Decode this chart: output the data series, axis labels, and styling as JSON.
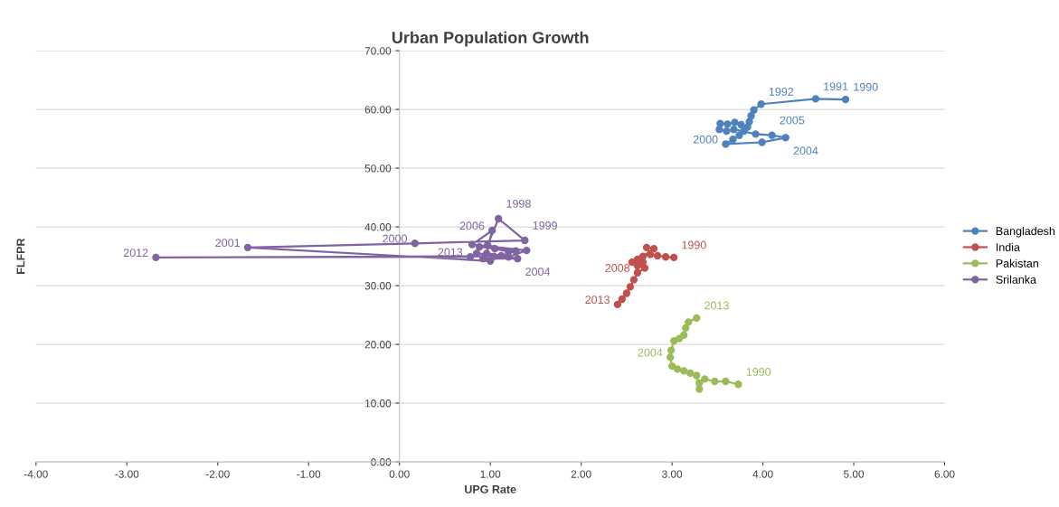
{
  "chart_data": {
    "type": "line",
    "title": "Urban Population Growth",
    "xlabel": "UPG Rate",
    "ylabel": "FLFPR",
    "xlim": [
      -4,
      6
    ],
    "ylim": [
      0,
      70
    ],
    "xticks": [
      {
        "value": -4,
        "label": "-4.00"
      },
      {
        "value": -3,
        "label": "-3.00"
      },
      {
        "value": -2,
        "label": "-2.00"
      },
      {
        "value": -1,
        "label": "-1.00"
      },
      {
        "value": 0,
        "label": "0.00"
      },
      {
        "value": 1,
        "label": "1.00"
      },
      {
        "value": 2,
        "label": "2.00"
      },
      {
        "value": 3,
        "label": "3.00"
      },
      {
        "value": 4,
        "label": "4.00"
      },
      {
        "value": 5,
        "label": "5.00"
      },
      {
        "value": 6,
        "label": "6.00"
      }
    ],
    "yticks": [
      {
        "value": 0,
        "label": "0.00"
      },
      {
        "value": 10,
        "label": "10.00"
      },
      {
        "value": 20,
        "label": "20.00"
      },
      {
        "value": 30,
        "label": "30.00"
      },
      {
        "value": 40,
        "label": "40.00"
      },
      {
        "value": 50,
        "label": "50.00"
      },
      {
        "value": 60,
        "label": "60.00"
      },
      {
        "value": 70,
        "label": "70.00"
      }
    ],
    "grid": "y",
    "legend": "right",
    "marker": "circle",
    "line_style": "solid",
    "series": [
      {
        "name": "Bangladesh",
        "color": "#4f81bd",
        "x": [
          4.91,
          4.58,
          3.98,
          3.9,
          3.87,
          3.85,
          3.83,
          3.79,
          3.74,
          3.67,
          3.59,
          3.99,
          4.25,
          4.1,
          3.92,
          3.68,
          3.6,
          3.52,
          3.53,
          3.61,
          3.69,
          3.76
        ],
        "values": [
          61.7,
          61.8,
          60.9,
          59.9,
          58.9,
          57.9,
          57.0,
          56.3,
          55.6,
          54.9,
          54.1,
          54.4,
          55.2,
          55.6,
          55.8,
          56.6,
          56.3,
          56.6,
          57.6,
          57.5,
          57.8,
          57.4
        ]
      },
      {
        "name": "India",
        "color": "#c0504d",
        "x": [
          3.02,
          2.93,
          2.84,
          2.76,
          2.72,
          2.8,
          2.68,
          2.62,
          2.56,
          2.68,
          2.62,
          2.7,
          2.62,
          2.58,
          2.54,
          2.5,
          2.45,
          2.4
        ],
        "values": [
          34.8,
          34.9,
          35.1,
          35.3,
          36.5,
          36.3,
          35.0,
          34.5,
          34.0,
          34.0,
          33.4,
          33.0,
          32.2,
          31.0,
          29.8,
          28.7,
          27.7,
          26.8
        ]
      },
      {
        "name": "Pakistan",
        "color": "#9bbb59",
        "x": [
          3.73,
          3.59,
          3.47,
          3.36,
          3.3,
          3.3,
          3.27,
          3.2,
          3.13,
          3.06,
          3.0,
          2.98,
          2.99,
          3.02,
          3.08,
          3.13,
          3.15,
          3.18,
          3.27
        ],
        "values": [
          13.2,
          13.7,
          13.7,
          14.1,
          13.4,
          12.4,
          14.7,
          15.1,
          15.5,
          15.8,
          16.3,
          17.8,
          19.0,
          20.6,
          21.0,
          21.6,
          22.8,
          23.8,
          24.5
        ]
      },
      {
        "name": "Srilanka",
        "color": "#8064a2",
        "x": [
          1.2,
          1.05,
          0.88,
          0.85,
          1.12,
          1.28,
          0.97,
          1.09,
          1.38,
          0.17,
          -1.67,
          1.0,
          0.92,
          1.3,
          0.96,
          1.02,
          0.8,
          1.4,
          1.2,
          1.04,
          -2.68,
          0.78
        ],
        "values": [
          35.8,
          36.3,
          36.6,
          35.5,
          35.1,
          35.9,
          36.9,
          41.4,
          37.7,
          37.2,
          36.5,
          34.2,
          34.6,
          34.6,
          35.5,
          39.4,
          37.0,
          36.0,
          34.9,
          35.0,
          34.8,
          34.9
        ]
      }
    ],
    "annotations": [
      {
        "text": "1990",
        "x": 4.91,
        "y": 61.7
      },
      {
        "text": "1991",
        "x": 4.58,
        "y": 61.8
      },
      {
        "text": "1992",
        "x": 3.98,
        "y": 60.9
      },
      {
        "text": "2000",
        "x": 3.59,
        "y": 54.1
      },
      {
        "text": "2004",
        "x": 4.25,
        "y": 55.2
      },
      {
        "text": "2005",
        "x": 4.1,
        "y": 55.6
      },
      {
        "text": "1990",
        "x": 3.02,
        "y": 34.8
      },
      {
        "text": "2008",
        "x": 2.62,
        "y": 32.2
      },
      {
        "text": "2013",
        "x": 2.4,
        "y": 26.8
      },
      {
        "text": "1990",
        "x": 3.73,
        "y": 13.2
      },
      {
        "text": "2004",
        "x": 2.98,
        "y": 17.8
      },
      {
        "text": "2013",
        "x": 3.27,
        "y": 24.5
      },
      {
        "text": "2012",
        "x": -2.68,
        "y": 34.8
      },
      {
        "text": "2001",
        "x": -1.67,
        "y": 36.5
      },
      {
        "text": "2000",
        "x": 0.17,
        "y": 37.2
      },
      {
        "text": "1998",
        "x": 1.09,
        "y": 41.4
      },
      {
        "text": "2006",
        "x": 1.02,
        "y": 39.4
      },
      {
        "text": "1999",
        "x": 1.38,
        "y": 37.7
      },
      {
        "text": "2013",
        "x": 0.78,
        "y": 34.9
      },
      {
        "text": "2004",
        "x": 1.3,
        "y": 34.6
      }
    ]
  }
}
